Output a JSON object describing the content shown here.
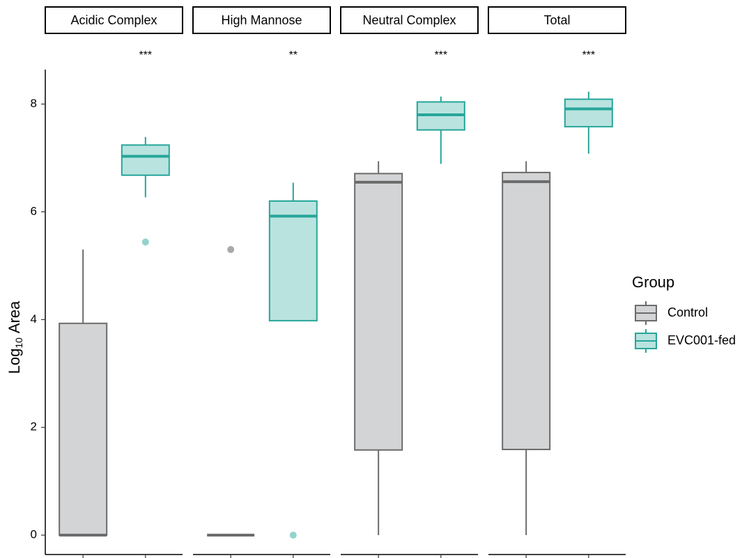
{
  "chart_data": {
    "type": "box",
    "y_label": {
      "base": "Log",
      "subscript": "10",
      "tail": "Area"
    },
    "ylim": [
      -0.36,
      8.64
    ],
    "yticks": [
      0,
      2,
      4,
      6,
      8
    ],
    "legend_title": "Group",
    "legend_position": "right",
    "series": [
      {
        "name": "Control",
        "color": "#6b6b6b",
        "fill": "#d3d4d6",
        "outlier_color": "#a8a8a8"
      },
      {
        "name": "EVC001-fed",
        "color": "#26a69a",
        "fill": "#b9e3df",
        "outlier_color": "#93d3cd"
      }
    ],
    "facets": [
      {
        "title": "Acidic Complex",
        "significance": "***",
        "groups": [
          {
            "low": 0,
            "q1": 0,
            "median": 0,
            "q3": 3.93,
            "high": 5.3,
            "outliers": []
          },
          {
            "low": 6.27,
            "q1": 6.68,
            "median": 7.03,
            "q3": 7.24,
            "high": 7.39,
            "outliers": [
              5.44
            ]
          }
        ]
      },
      {
        "title": "High Mannose",
        "significance": "**",
        "groups": [
          {
            "low": 0,
            "q1": 0,
            "median": 0,
            "q3": 0,
            "high": 0,
            "outliers": [
              5.3
            ]
          },
          {
            "low": 3.98,
            "q1": 3.98,
            "median": 5.92,
            "q3": 6.2,
            "high": 6.54,
            "outliers": [
              0
            ]
          }
        ]
      },
      {
        "title": "Neutral Complex",
        "significance": "***",
        "groups": [
          {
            "low": 0,
            "q1": 1.58,
            "median": 6.55,
            "q3": 6.71,
            "high": 6.94,
            "outliers": []
          },
          {
            "low": 6.89,
            "q1": 7.52,
            "median": 7.8,
            "q3": 8.04,
            "high": 8.14,
            "outliers": []
          }
        ]
      },
      {
        "title": "Total",
        "significance": "***",
        "groups": [
          {
            "low": 0,
            "q1": 1.59,
            "median": 6.56,
            "q3": 6.73,
            "high": 6.94,
            "outliers": []
          },
          {
            "low": 7.08,
            "q1": 7.58,
            "median": 7.91,
            "q3": 8.09,
            "high": 8.23,
            "outliers": []
          }
        ]
      }
    ]
  }
}
